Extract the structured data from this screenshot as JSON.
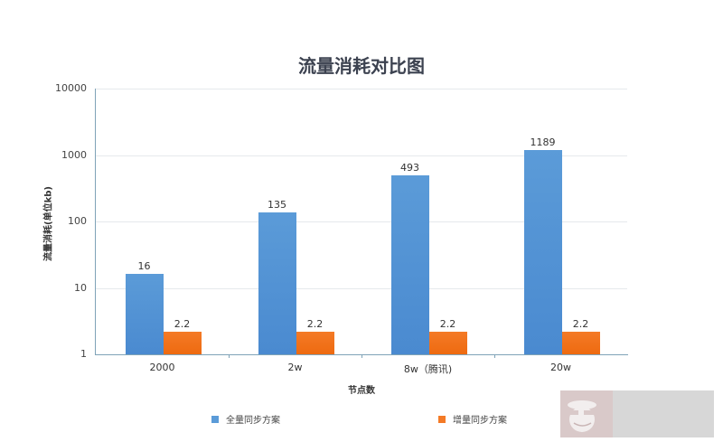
{
  "chart_data": {
    "type": "bar",
    "title": "流量消耗对比图",
    "xlabel": "节点数",
    "ylabel": "流量消耗(单位kb)",
    "yscale": "log",
    "ylim": [
      1,
      10000
    ],
    "yticks": [
      "10000",
      "1000",
      "100",
      "10",
      "1"
    ],
    "categories": [
      "2000",
      "2w",
      "8w（腾讯)",
      "20w"
    ],
    "series": [
      {
        "name": "全量同步方案",
        "color": "#5b9bd8",
        "values": [
          16,
          135,
          493,
          1189
        ],
        "labels": [
          "16",
          "135",
          "493",
          "1189"
        ]
      },
      {
        "name": "增量同步方案",
        "color": "#f47a26",
        "values": [
          2.2,
          2.2,
          2.2,
          2.2
        ],
        "labels": [
          "2.2",
          "2.2",
          "2.2",
          "2.2"
        ]
      }
    ],
    "grid": true,
    "legend_position": "bottom"
  }
}
